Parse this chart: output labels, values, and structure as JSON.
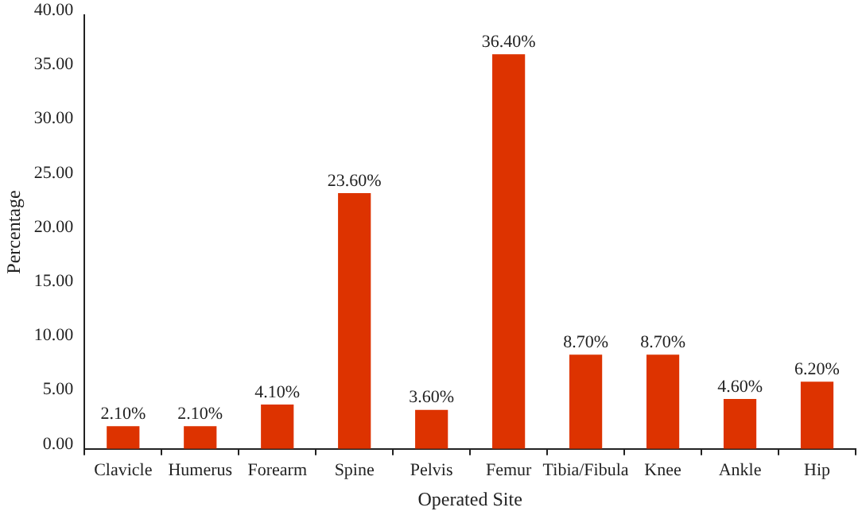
{
  "chart_data": {
    "type": "bar",
    "xlabel": "Operated Site",
    "ylabel": "Percentage",
    "categories": [
      "Clavicle",
      "Humerus",
      "Forearm",
      "Spine",
      "Pelvis",
      "Femur",
      "Tibia/Fibula",
      "Knee",
      "Ankle",
      "Hip"
    ],
    "values": [
      2.1,
      2.1,
      4.1,
      23.6,
      3.6,
      36.4,
      8.7,
      8.7,
      4.6,
      6.2
    ],
    "value_labels": [
      "2.10%",
      "2.10%",
      "4.10%",
      "23.60%",
      "3.60%",
      "36.40%",
      "8.70%",
      "8.70%",
      "4.60%",
      "6.20%"
    ],
    "color": "#dd3300",
    "ylim": [
      0,
      40
    ],
    "yticks": [
      {
        "value": 0,
        "label": "0.00"
      },
      {
        "value": 5,
        "label": "5.00"
      },
      {
        "value": 10,
        "label": "10.00"
      },
      {
        "value": 15,
        "label": "15.00"
      },
      {
        "value": 20,
        "label": "20.00"
      },
      {
        "value": 25,
        "label": "25.00"
      },
      {
        "value": 30,
        "label": "30.00"
      },
      {
        "value": 35,
        "label": "35.00"
      },
      {
        "value": 40,
        "label": "40.00"
      }
    ],
    "grid": false,
    "legend": false
  }
}
